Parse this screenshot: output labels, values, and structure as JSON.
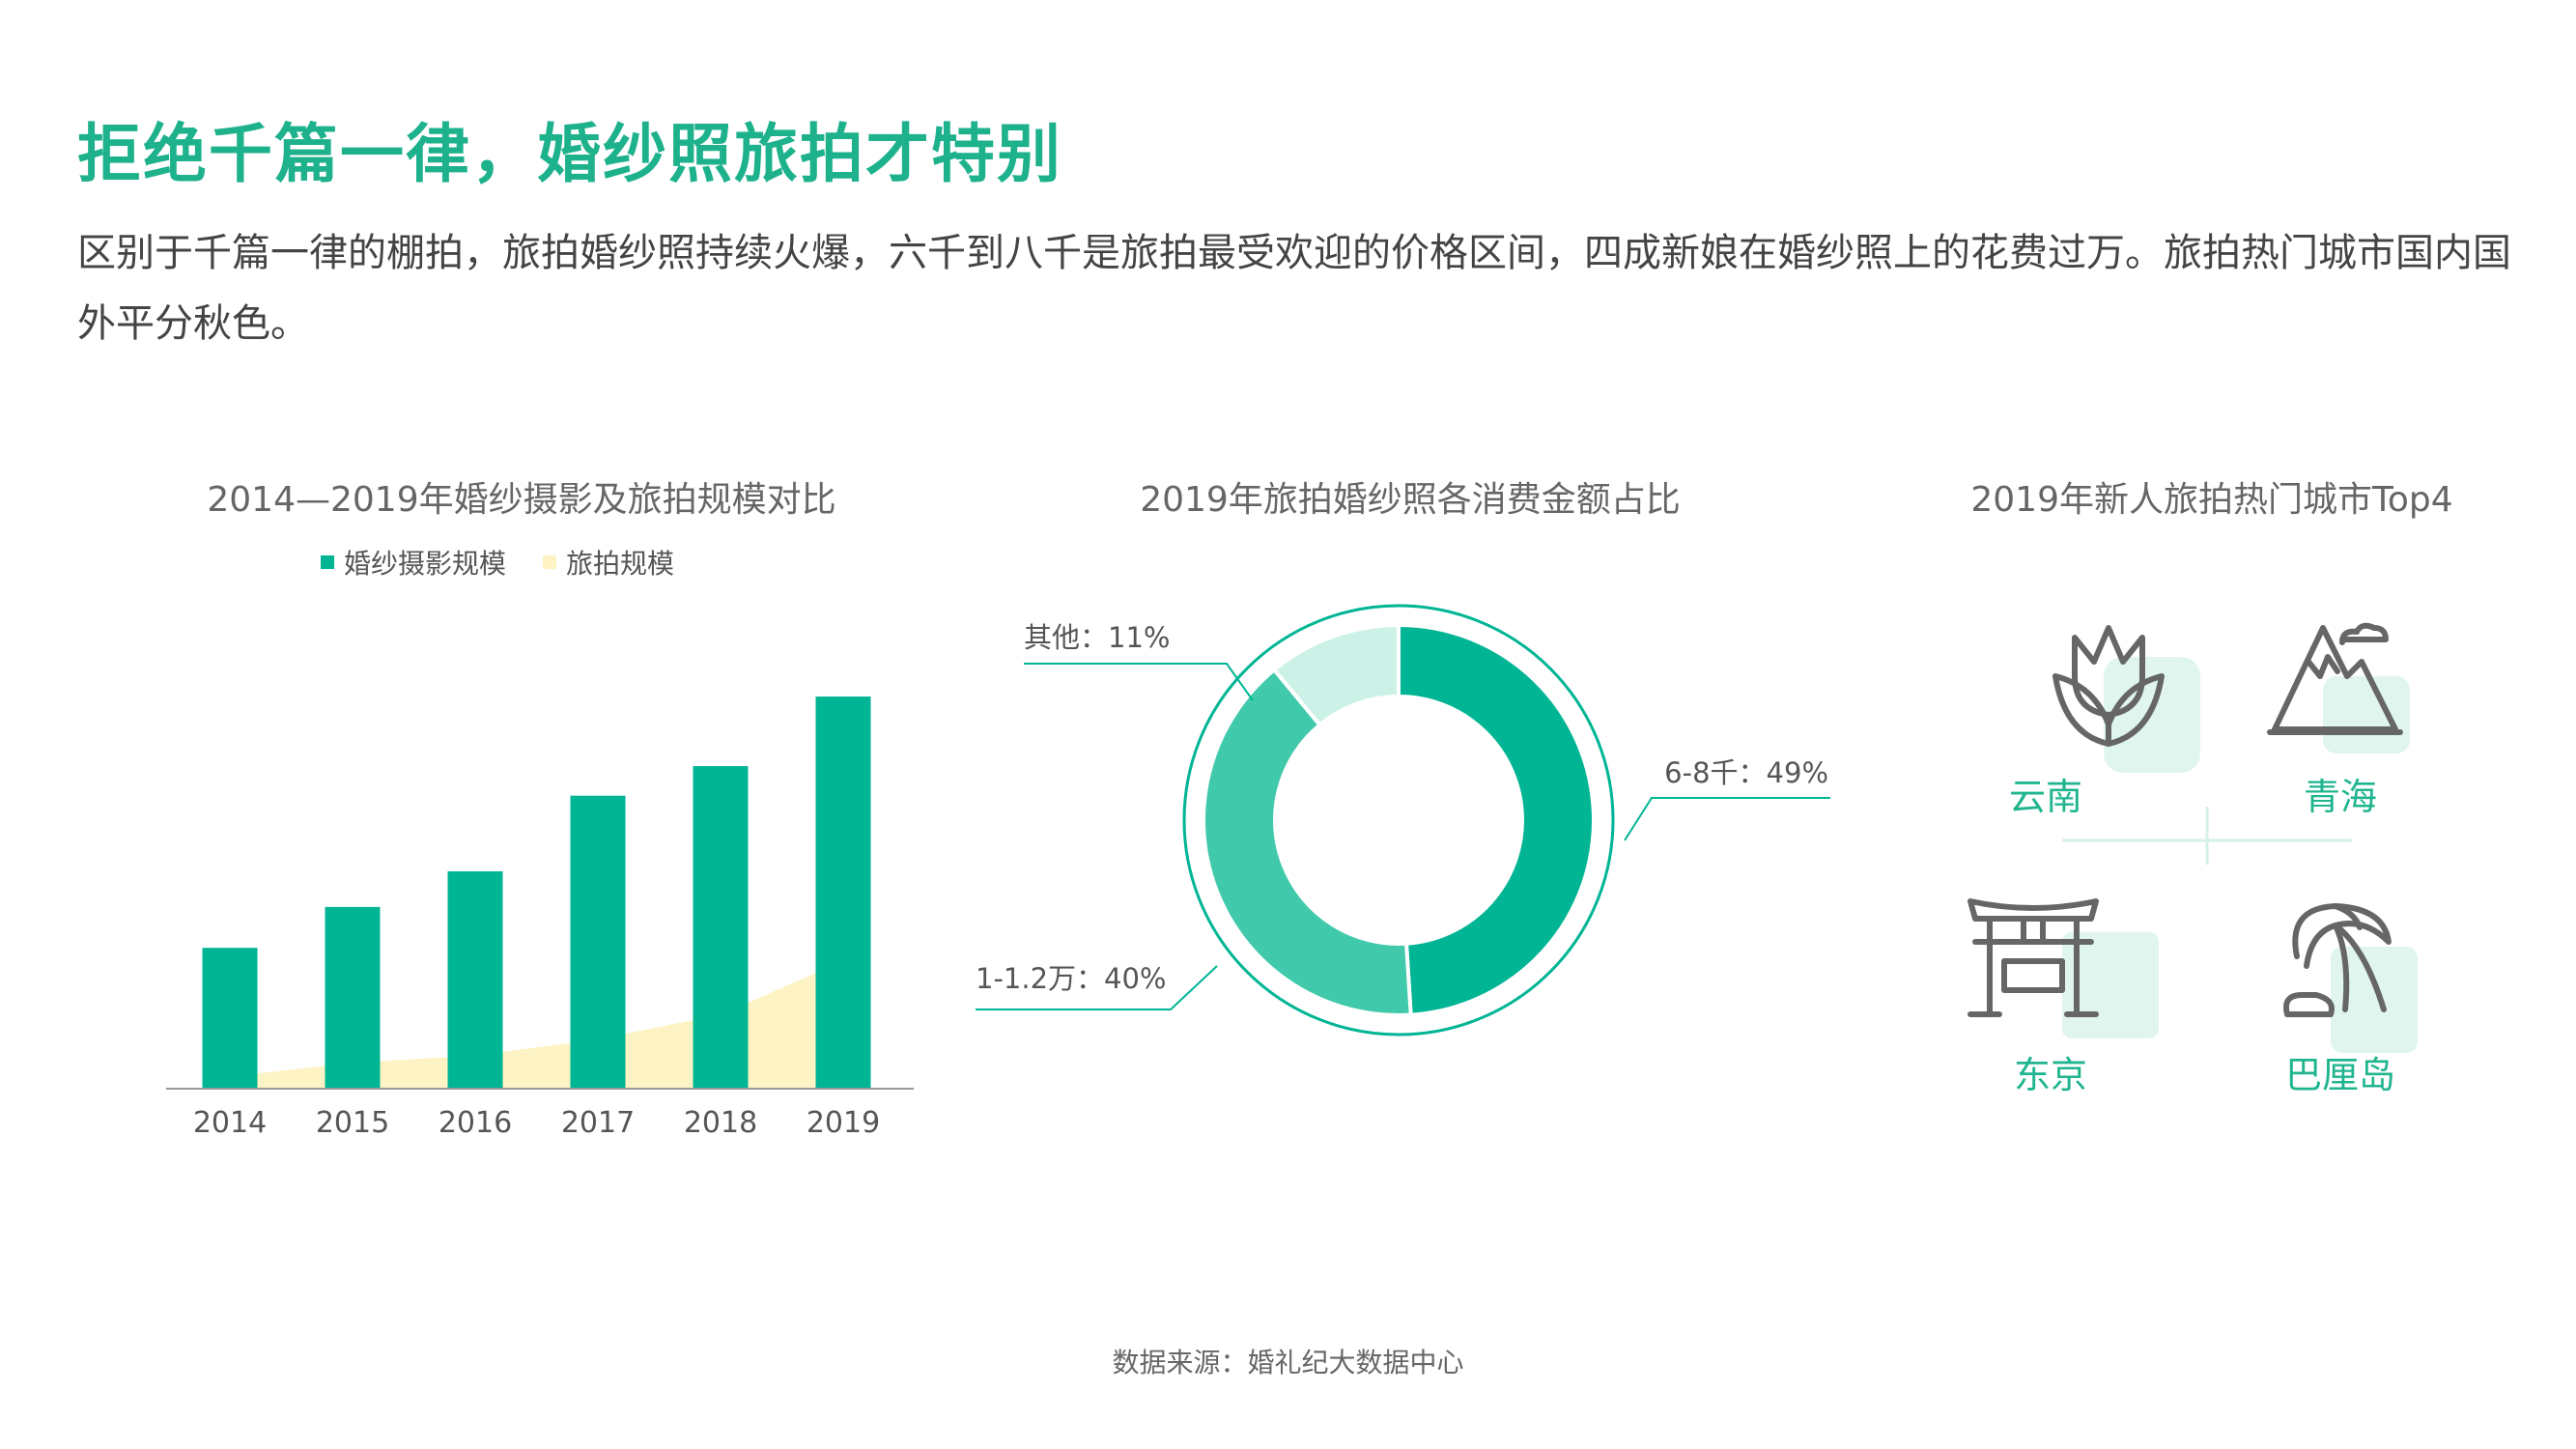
{
  "header": {
    "title": "拒绝千篇一律，婚纱照旅拍才特别",
    "description": "区别于千篇一律的棚拍，旅拍婚纱照持续火爆，六千到八千是旅拍最受欢迎的价格区间，四成新娘在婚纱照上的花费过万。旅拍热门城市国内国外平分秋色。"
  },
  "colors": {
    "primary": "#00b594",
    "title_green": "#1db18c",
    "cream": "#fdf3c4",
    "mid_green": "#40c9ab",
    "light_green": "#ccf1e7",
    "icon_gray": "#666666",
    "icon_shadow": "#dff5ee"
  },
  "chart_data": [
    {
      "type": "bar",
      "title": "2014—2019年婚纱摄影及旅拍规模对比",
      "categories": [
        "2014",
        "2015",
        "2016",
        "2017",
        "2018",
        "2019"
      ],
      "series": [
        {
          "name": "婚纱摄影规模",
          "values": [
            162,
            209,
            250,
            337,
            371,
            451
          ],
          "color": "#00b594"
        },
        {
          "name": "旅拍规模",
          "values": [
            14,
            30,
            38,
            57,
            85,
            147
          ],
          "color": "#fdf3c4"
        }
      ],
      "ylim": [
        0,
        500
      ],
      "grid": false,
      "legend": "top"
    },
    {
      "type": "pie",
      "title": "2019年旅拍婚纱照各消费金额占比",
      "slices": [
        {
          "label": "6-8千：49%",
          "value": 49,
          "color": "#00b594"
        },
        {
          "label": "1-1.2万：40%",
          "value": 40,
          "color": "#40c9ab"
        },
        {
          "label": "其他：11%",
          "value": 11,
          "color": "#ccf1e7"
        }
      ]
    }
  ],
  "cities": {
    "title": "2019年新人旅拍热门城市Top4",
    "items": [
      {
        "name": "云南",
        "icon": "tulip-icon"
      },
      {
        "name": "青海",
        "icon": "mountain-icon"
      },
      {
        "name": "东京",
        "icon": "torii-gate-icon"
      },
      {
        "name": "巴厘岛",
        "icon": "palm-tree-icon"
      }
    ]
  },
  "footer": {
    "source": "数据来源：婚礼纪大数据中心"
  }
}
